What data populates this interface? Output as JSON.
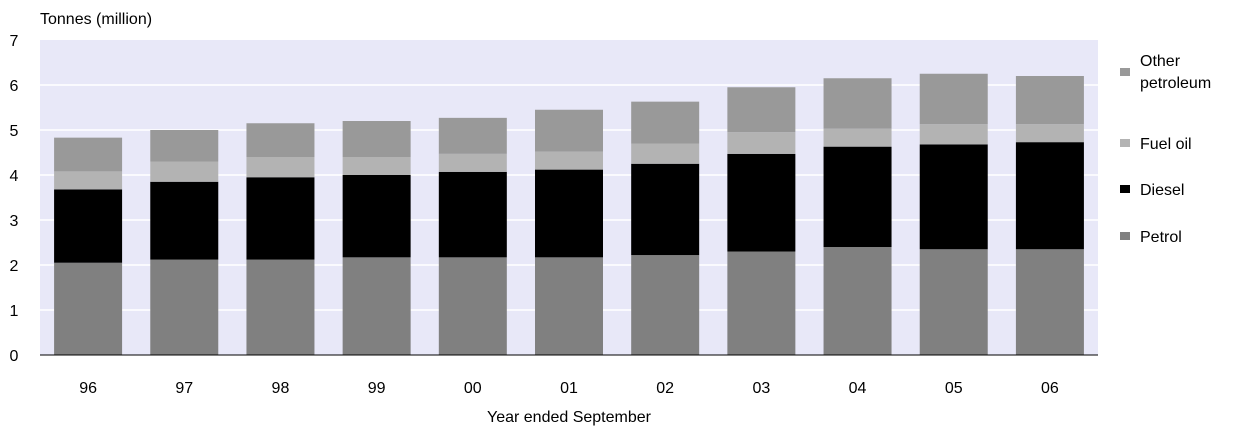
{
  "chart_data": {
    "type": "bar",
    "stacked": true,
    "title": "",
    "ylabel": "Tonnes (million)",
    "xlabel": "Year ended September",
    "ylim": [
      0,
      7
    ],
    "yticks": [
      "0",
      "1",
      "2",
      "3",
      "4",
      "5",
      "6",
      "7"
    ],
    "grid": true,
    "legend_position": "right",
    "categories": [
      "96",
      "97",
      "98",
      "99",
      "00",
      "01",
      "02",
      "03",
      "04",
      "05",
      "06"
    ],
    "series": [
      {
        "name": "Petrol",
        "color": "#808080",
        "values": [
          2.05,
          2.12,
          2.12,
          2.17,
          2.17,
          2.17,
          2.22,
          2.3,
          2.4,
          2.35,
          2.35
        ]
      },
      {
        "name": "Diesel",
        "color": "#000000",
        "values": [
          1.63,
          1.73,
          1.83,
          1.83,
          1.9,
          1.95,
          2.03,
          2.17,
          2.23,
          2.33,
          2.38
        ]
      },
      {
        "name": "Fuel oil",
        "color": "#b3b3b3",
        "values": [
          0.4,
          0.45,
          0.45,
          0.4,
          0.4,
          0.4,
          0.45,
          0.48,
          0.4,
          0.45,
          0.4
        ]
      },
      {
        "name": "Other petroleum",
        "color": "#999999",
        "values": [
          0.75,
          0.7,
          0.75,
          0.8,
          0.8,
          0.93,
          0.93,
          1.0,
          1.12,
          1.12,
          1.07
        ]
      }
    ],
    "legend": [
      {
        "lines": [
          "Other",
          "petroleum"
        ],
        "color": "#999999"
      },
      {
        "lines": [
          "Fuel oil"
        ],
        "color": "#b3b3b3"
      },
      {
        "lines": [
          "Diesel"
        ],
        "color": "#000000"
      },
      {
        "lines": [
          "Petrol"
        ],
        "color": "#808080"
      }
    ],
    "colors": {
      "plot_background": "#e8e8f8",
      "gridline": "#ffffff"
    }
  }
}
